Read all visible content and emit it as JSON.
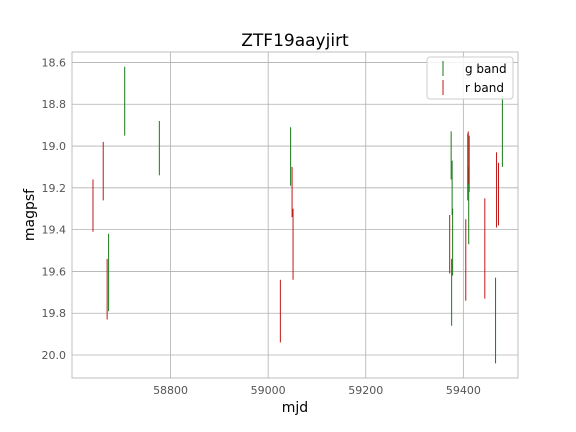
{
  "chart_data": {
    "type": "errorbar",
    "title": "ZTF19aayjirt",
    "xlabel": "mjd",
    "ylabel": "magpsf",
    "xlim": [
      58598,
      59512
    ],
    "ylim": [
      20.11,
      18.55
    ],
    "y_inverted": true,
    "grid": true,
    "legend_position": "upper-right",
    "xticks": [
      58800,
      59000,
      59200,
      59400
    ],
    "yticks": [
      18.6,
      18.8,
      19.0,
      19.2,
      19.4,
      19.6,
      19.8,
      20.0
    ],
    "series": [
      {
        "name": "g band",
        "color": "#1a7a1a",
        "segments": [
          {
            "x": 58706,
            "y_top": 18.62,
            "y_bottom": 18.95
          },
          {
            "x": 58777,
            "y_top": 18.88,
            "y_bottom": 19.14
          },
          {
            "x": 58673,
            "y_top": 19.42,
            "y_bottom": 19.79
          },
          {
            "x": 59046,
            "y_top": 18.91,
            "y_bottom": 19.19
          },
          {
            "x": 59375,
            "y_top": 18.93,
            "y_bottom": 19.16
          },
          {
            "x": 59377,
            "y_top": 19.07,
            "y_bottom": 19.33
          },
          {
            "x": 59376,
            "y_top": 19.54,
            "y_bottom": 19.86
          },
          {
            "x": 59378,
            "y_top": 19.3,
            "y_bottom": 19.62
          },
          {
            "x": 59409,
            "y_top": 18.94,
            "y_bottom": 19.26
          },
          {
            "x": 59411,
            "y_top": 19.1,
            "y_bottom": 19.47
          },
          {
            "x": 59412,
            "y_top": 18.95,
            "y_bottom": 19.22
          },
          {
            "x": 59466,
            "y_top": 19.63,
            "y_bottom": 20.04
          },
          {
            "x": 59480,
            "y_top": 18.76,
            "y_bottom": 19.1
          }
        ]
      },
      {
        "name": "r band",
        "color": "#c01818",
        "segments": [
          {
            "x": 58641,
            "y_top": 19.16,
            "y_bottom": 19.41
          },
          {
            "x": 58662,
            "y_top": 18.98,
            "y_bottom": 19.26
          },
          {
            "x": 58670,
            "y_top": 19.54,
            "y_bottom": 19.83
          },
          {
            "x": 59025,
            "y_top": 19.64,
            "y_bottom": 19.94
          },
          {
            "x": 59049,
            "y_top": 19.1,
            "y_bottom": 19.34
          },
          {
            "x": 59051,
            "y_top": 19.3,
            "y_bottom": 19.64
          },
          {
            "x": 59372,
            "y_top": 19.33,
            "y_bottom": 19.61
          },
          {
            "x": 59405,
            "y_top": 19.35,
            "y_bottom": 19.74
          },
          {
            "x": 59410,
            "y_top": 18.93,
            "y_bottom": 19.18
          },
          {
            "x": 59444,
            "y_top": 19.25,
            "y_bottom": 19.73
          },
          {
            "x": 59468,
            "y_top": 19.03,
            "y_bottom": 19.39
          },
          {
            "x": 59472,
            "y_top": 19.08,
            "y_bottom": 19.38
          }
        ]
      }
    ]
  }
}
